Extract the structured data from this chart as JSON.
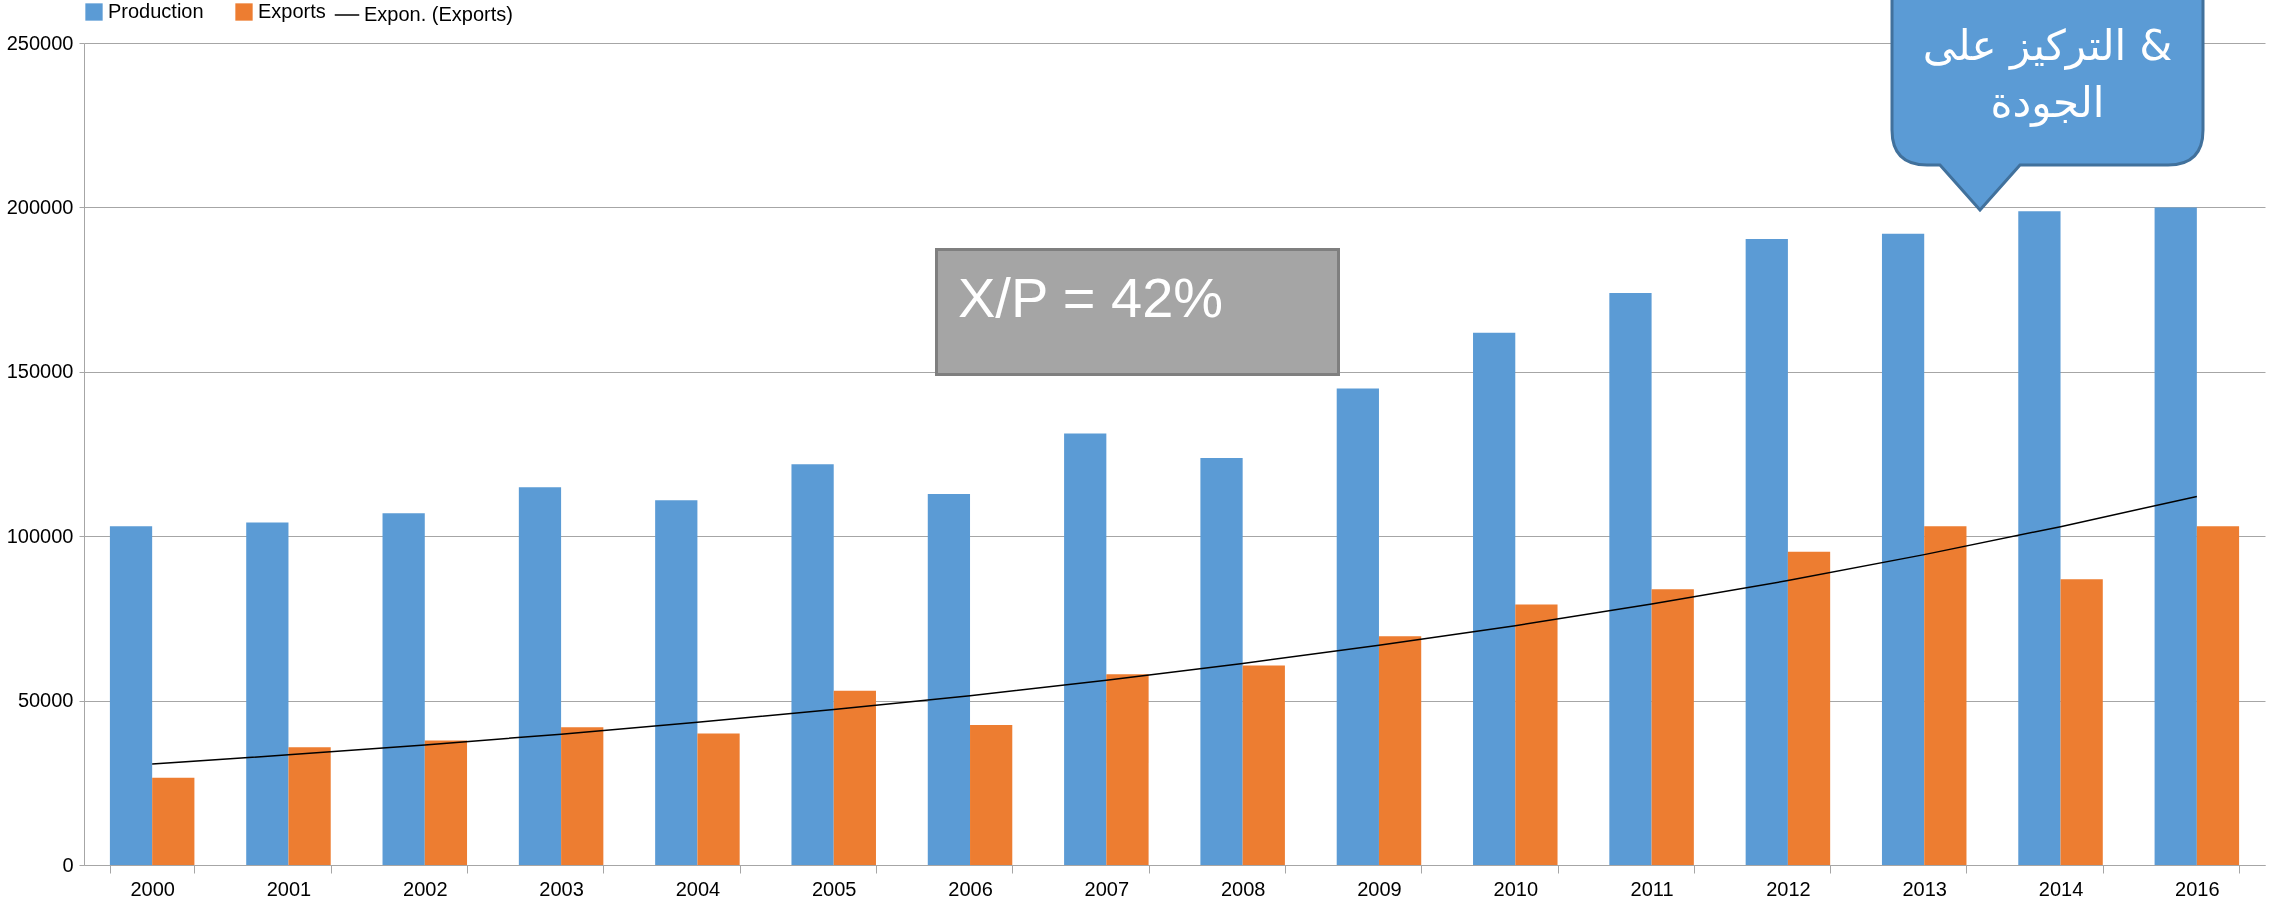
{
  "chart_data": {
    "type": "bar",
    "categories": [
      "2000",
      "2001",
      "2002",
      "2003",
      "2004",
      "2005",
      "2006",
      "2007",
      "2008",
      "2009",
      "2010",
      "2011",
      "2012",
      "2013",
      "2014",
      "2016"
    ],
    "series": [
      {
        "name": "Production",
        "color": "#5b9bd5",
        "values": [
          103000,
          104200,
          107000,
          114900,
          110900,
          121900,
          112800,
          131200,
          123800,
          144900,
          161900,
          174000,
          190400,
          192000,
          198800,
          200000
        ]
      },
      {
        "name": "Exports",
        "color": "#ed7d31",
        "values": [
          26500,
          35800,
          37900,
          41900,
          40000,
          53000,
          42600,
          58000,
          60700,
          69600,
          79200,
          83900,
          95300,
          103000,
          86900,
          103000
        ]
      },
      {
        "name": "Expon. (Exports)",
        "type": "line",
        "color": "#000000",
        "values": [
          30700,
          33500,
          36500,
          39800,
          43400,
          47300,
          51500,
          56200,
          61300,
          66800,
          72800,
          79400,
          86500,
          94400,
          102900,
          112100
        ]
      }
    ],
    "ylim": [
      0,
      250000
    ],
    "yticks": [
      0,
      50000,
      100000,
      150000,
      200000,
      250000
    ],
    "grid": "y",
    "legend": "top",
    "annotations": [
      "X/P = 42%",
      "& التركيز على الجودة"
    ]
  }
}
